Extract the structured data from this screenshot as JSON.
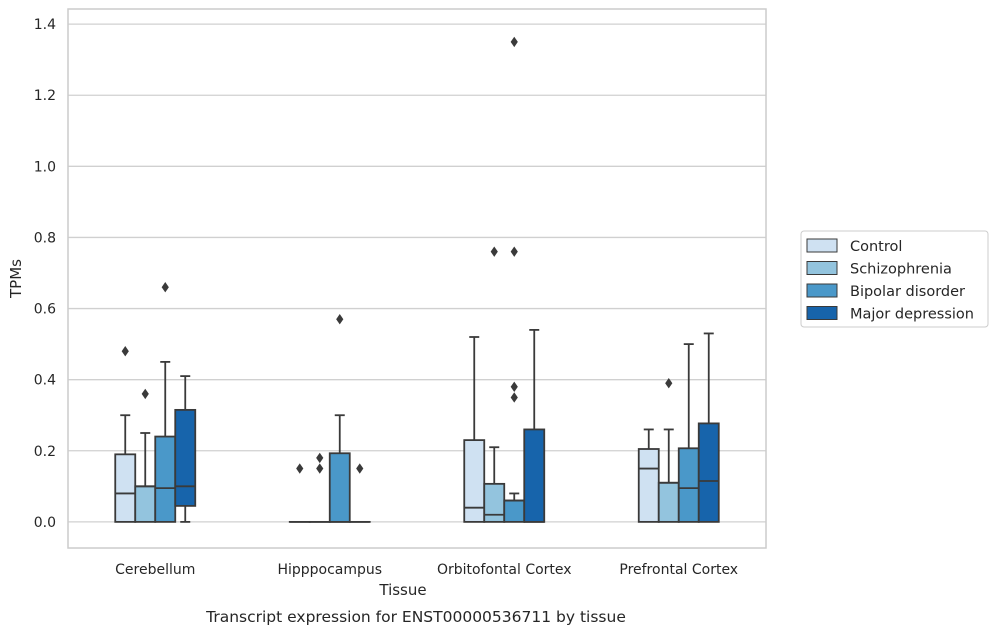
{
  "chart_data": {
    "type": "boxplot",
    "xlabel": "Tissue",
    "ylabel": "TPMs",
    "caption": "Transcript expression for ENST00000536711 by tissue",
    "ylim": [
      -0.065,
      1.42
    ],
    "yticks": [
      "0.0",
      "0.2",
      "0.4",
      "0.6",
      "0.8",
      "1.0",
      "1.2",
      "1.4"
    ],
    "grid": "horizontal",
    "legend_position": "right",
    "categories": [
      "Cerebellum",
      "Hipppocampus",
      "Orbitofontal Cortex",
      "Prefrontal Cortex"
    ],
    "series": [
      {
        "name": "Control",
        "color": "#cfe1f2",
        "boxes": [
          {
            "q1": 0.0,
            "median": 0.08,
            "q3": 0.19,
            "whislo": 0.0,
            "whishi": 0.3,
            "fliers": [
              0.48
            ]
          },
          {
            "q1": 0.0,
            "median": 0.0,
            "q3": 0.0,
            "whislo": 0.0,
            "whishi": 0.0,
            "fliers": [
              0.15
            ]
          },
          {
            "q1": 0.0,
            "median": 0.04,
            "q3": 0.23,
            "whislo": 0.0,
            "whishi": 0.52,
            "fliers": []
          },
          {
            "q1": 0.0,
            "median": 0.15,
            "q3": 0.205,
            "whislo": 0.0,
            "whishi": 0.26,
            "fliers": []
          }
        ]
      },
      {
        "name": "Schizophrenia",
        "color": "#93c4de",
        "boxes": [
          {
            "q1": 0.0,
            "median": 0.1,
            "q3": 0.1,
            "whislo": 0.0,
            "whishi": 0.25,
            "fliers": [
              0.36
            ]
          },
          {
            "q1": 0.0,
            "median": 0.0,
            "q3": 0.0,
            "whislo": 0.0,
            "whishi": 0.0,
            "fliers": [
              0.15,
              0.18
            ]
          },
          {
            "q1": 0.0,
            "median": 0.02,
            "q3": 0.107,
            "whislo": 0.0,
            "whishi": 0.21,
            "fliers": [
              0.76
            ]
          },
          {
            "q1": 0.0,
            "median": 0.11,
            "q3": 0.11,
            "whislo": 0.0,
            "whishi": 0.26,
            "fliers": [
              0.39
            ]
          }
        ]
      },
      {
        "name": "Bipolar disorder",
        "color": "#4a98c9",
        "boxes": [
          {
            "q1": 0.0,
            "median": 0.095,
            "q3": 0.24,
            "whislo": 0.0,
            "whishi": 0.45,
            "fliers": [
              0.66
            ]
          },
          {
            "q1": 0.0,
            "median": 0.0,
            "q3": 0.193,
            "whislo": 0.0,
            "whishi": 0.3,
            "fliers": [
              0.57
            ]
          },
          {
            "q1": 0.0,
            "median": 0.06,
            "q3": 0.06,
            "whislo": 0.0,
            "whishi": 0.08,
            "fliers": [
              0.35,
              0.38,
              0.76,
              1.35
            ]
          },
          {
            "q1": 0.0,
            "median": 0.095,
            "q3": 0.207,
            "whislo": 0.0,
            "whishi": 0.5,
            "fliers": []
          }
        ]
      },
      {
        "name": "Major depression",
        "color": "#1764ab",
        "boxes": [
          {
            "q1": 0.045,
            "median": 0.1,
            "q3": 0.315,
            "whislo": 0.0,
            "whishi": 0.41,
            "fliers": []
          },
          {
            "q1": 0.0,
            "median": 0.0,
            "q3": 0.0,
            "whislo": 0.0,
            "whishi": 0.0,
            "fliers": [
              0.15
            ]
          },
          {
            "q1": 0.0,
            "median": 0.0,
            "q3": 0.26,
            "whislo": 0.0,
            "whishi": 0.54,
            "fliers": []
          },
          {
            "q1": 0.0,
            "median": 0.115,
            "q3": 0.277,
            "whislo": 0.0,
            "whishi": 0.53,
            "fliers": []
          }
        ]
      }
    ]
  }
}
